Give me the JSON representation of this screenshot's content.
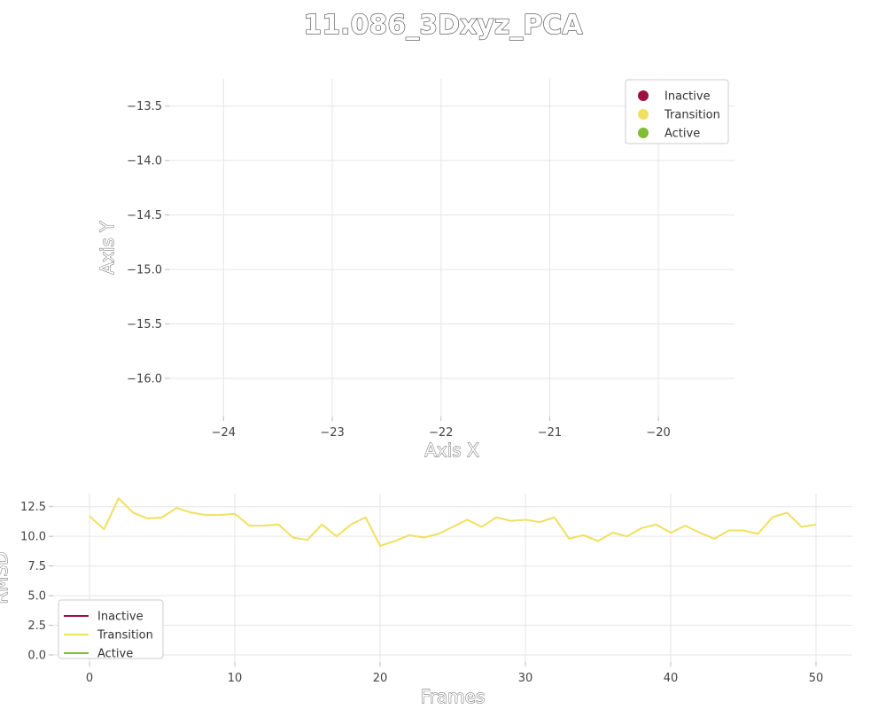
{
  "chart_data": [
    {
      "type": "scatter",
      "title": "11.086_3Dxyz_PCA",
      "xlabel": "Axis X",
      "ylabel": "Axis Y",
      "xlim": [
        -24.5,
        -19.3
      ],
      "ylim": [
        -16.35,
        -13.25
      ],
      "xticks": [
        -24,
        -23,
        -22,
        -21,
        -20
      ],
      "xtick_labels": [
        "−24",
        "−23",
        "−22",
        "−21",
        "−20"
      ],
      "yticks": [
        -13.5,
        -14.0,
        -14.5,
        -15.0,
        -15.5,
        -16.0
      ],
      "ytick_labels": [
        "−13.5",
        "−14.0",
        "−14.5",
        "−15.0",
        "−15.5",
        "−16.0"
      ],
      "grid": true,
      "legend_position": "top-right",
      "series": [
        {
          "name": "Inactive",
          "color": "#9e0f3f",
          "x": [],
          "y": []
        },
        {
          "name": "Transition",
          "color": "#f0e060",
          "x": [],
          "y": []
        },
        {
          "name": "Active",
          "color": "#7cbd32",
          "x": [],
          "y": []
        }
      ]
    },
    {
      "type": "line",
      "xlabel": "Frames",
      "ylabel": "RMSD",
      "xlim": [
        -2.5,
        52.5
      ],
      "ylim": [
        -0.6,
        13.6
      ],
      "xticks": [
        0,
        10,
        20,
        30,
        40,
        50
      ],
      "xtick_labels": [
        "0",
        "10",
        "20",
        "30",
        "40",
        "50"
      ],
      "yticks": [
        0.0,
        2.5,
        5.0,
        7.5,
        10.0,
        12.5
      ],
      "ytick_labels": [
        "0.0",
        "2.5",
        "5.0",
        "7.5",
        "10.0",
        "12.5"
      ],
      "grid": true,
      "legend_position": "bottom-left",
      "series": [
        {
          "name": "Inactive",
          "color": "#9e0f3f",
          "x": [],
          "y": []
        },
        {
          "name": "Transition",
          "color": "#f0e060",
          "x": [
            0,
            1,
            2,
            3,
            4,
            5,
            6,
            7,
            8,
            9,
            10,
            11,
            12,
            13,
            14,
            15,
            16,
            17,
            18,
            19,
            20,
            21,
            22,
            23,
            24,
            25,
            26,
            27,
            28,
            29,
            30,
            31,
            32,
            33,
            34,
            35,
            36,
            37,
            38,
            39,
            40,
            41,
            42,
            43,
            44,
            45,
            46,
            47,
            48,
            49,
            50
          ],
          "y": [
            11.7,
            10.6,
            13.2,
            12.0,
            11.5,
            11.6,
            12.4,
            12.0,
            11.8,
            11.8,
            11.9,
            10.9,
            10.9,
            11.0,
            9.9,
            9.7,
            11.0,
            10.0,
            11.0,
            11.6,
            9.2,
            9.6,
            10.1,
            9.9,
            10.2,
            10.8,
            11.4,
            10.8,
            11.6,
            11.3,
            11.4,
            11.2,
            11.6,
            9.8,
            10.1,
            9.6,
            10.3,
            10.0,
            10.7,
            11.0,
            10.3,
            10.9,
            10.3,
            9.8,
            10.5,
            10.5,
            10.2,
            11.6,
            12.0,
            10.8,
            11.0
          ]
        },
        {
          "name": "Active",
          "color": "#7cbd32",
          "x": [],
          "y": []
        }
      ]
    }
  ]
}
